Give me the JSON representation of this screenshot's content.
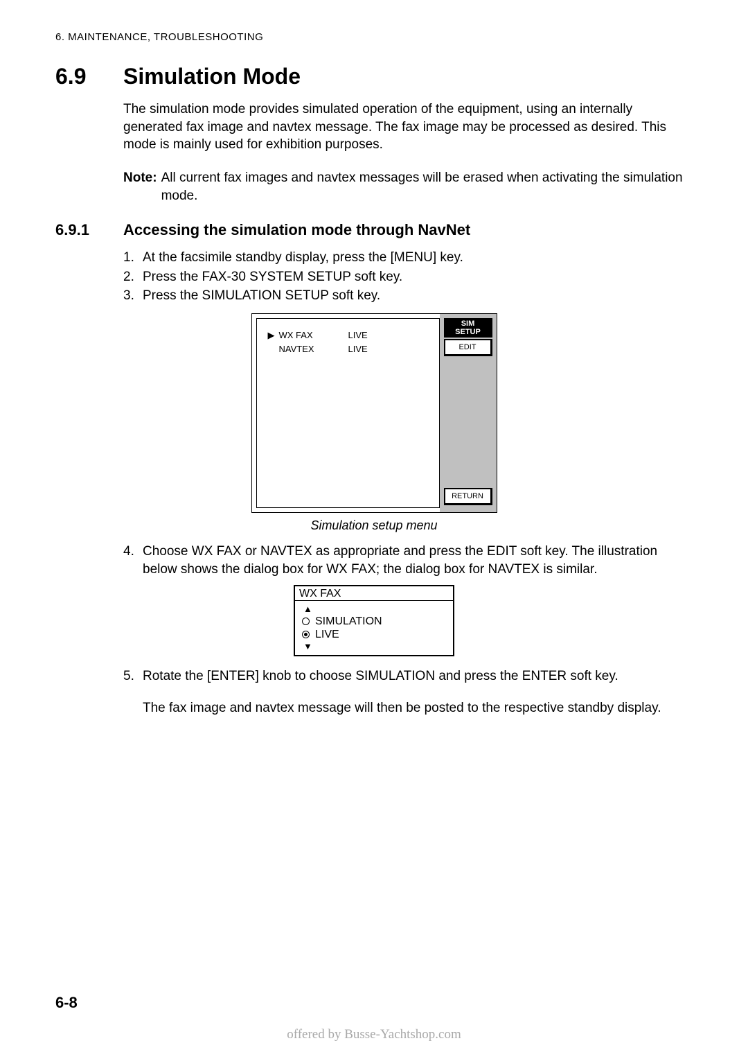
{
  "header": "6. MAINTENANCE, TROUBLESHOOTING",
  "section": {
    "num": "6.9",
    "name": "Simulation Mode"
  },
  "intro": "The simulation mode provides simulated operation of the equipment, using an internally generated fax image and navtex message. The fax image may be processed as desired. This mode is mainly used for exhibition purposes.",
  "note": {
    "label": "Note:",
    "text": "All current fax images and navtex messages will be erased when activating the simulation mode."
  },
  "subsection": {
    "num": "6.9.1",
    "name": "Accessing the simulation mode through NavNet"
  },
  "steps_a": [
    {
      "n": "1.",
      "t": "At the facsimile standby display, press the [MENU] key."
    },
    {
      "n": "2.",
      "t": "Press the FAX-30 SYSTEM SETUP soft key."
    },
    {
      "n": "3.",
      "t": "Press the SIMULATION SETUP soft key."
    }
  ],
  "menu": {
    "rows": [
      {
        "arrow": "▶",
        "label": "WX FAX",
        "value": "LIVE"
      },
      {
        "arrow": "",
        "label": "NAVTEX",
        "value": "LIVE"
      }
    ],
    "softkeys": {
      "header1": "SIM",
      "header2": "SETUP",
      "edit": "EDIT",
      "return": "RETURN"
    },
    "caption": "Simulation setup menu"
  },
  "step4": {
    "n": "4.",
    "t": "Choose WX FAX or NAVTEX as appropriate and press the EDIT soft key. The illustration below shows the dialog box for WX FAX; the dialog box for NAVTEX is similar."
  },
  "dialog": {
    "title": "WX FAX",
    "options": [
      {
        "label": "SIMULATION",
        "selected": false
      },
      {
        "label": "LIVE",
        "selected": true
      }
    ]
  },
  "step5": {
    "n": "5.",
    "t": "Rotate the [ENTER] knob to choose SIMULATION and press the ENTER soft key."
  },
  "closing": "The fax image and navtex message will then be posted to the respective standby display.",
  "pageNumber": "6-8",
  "footer": "offered by Busse-Yachtshop.com"
}
